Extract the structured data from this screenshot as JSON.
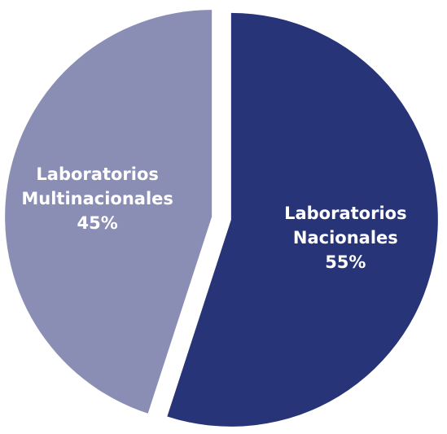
{
  "chart_data": {
    "type": "pie",
    "categories": [
      "Laboratorios Nacionales",
      "Laboratorios Multinacionales"
    ],
    "values": [
      55,
      45
    ],
    "value_labels": [
      "55%",
      "45%"
    ],
    "colors": [
      "#283478",
      "#8a8eb4"
    ]
  }
}
